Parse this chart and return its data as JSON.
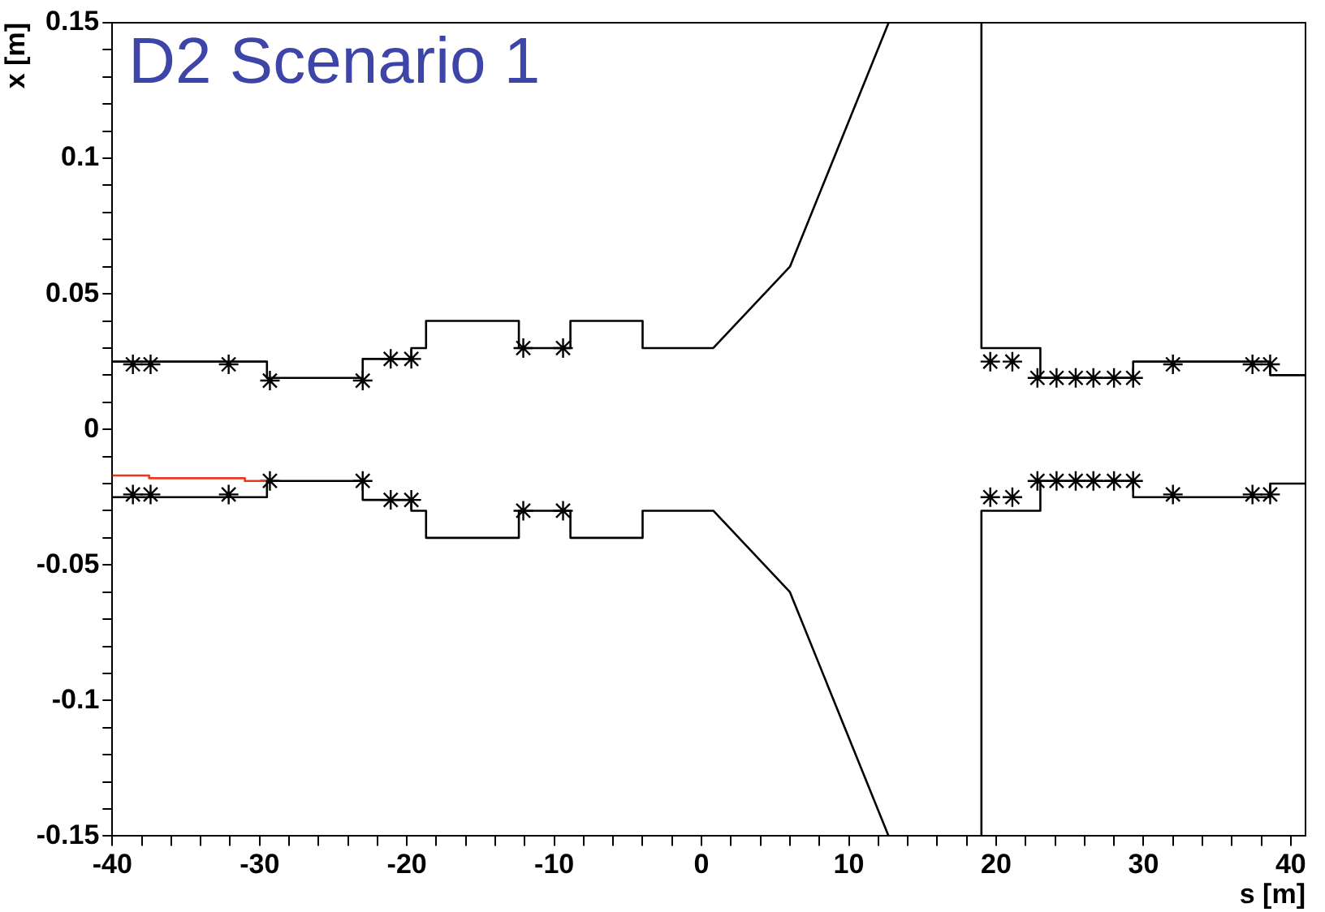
{
  "chart_data": {
    "type": "line",
    "title": "D2 Scenario 1",
    "xlabel": "s [m]",
    "ylabel": "x [m]",
    "xlim": [
      -40,
      41
    ],
    "ylim": [
      -0.15,
      0.15
    ],
    "xticks": [
      -40,
      {
        "value": -38,
        "label": null
      },
      {
        "value": -36,
        "label": null
      },
      {
        "value": -34,
        "label": null
      },
      {
        "value": -32,
        "label": null
      },
      -30,
      {
        "value": -28,
        "label": null
      },
      {
        "value": -26,
        "label": null
      },
      {
        "value": -24,
        "label": null
      },
      {
        "value": -22,
        "label": null
      },
      -20,
      {
        "value": -18,
        "label": null
      },
      {
        "value": -16,
        "label": null
      },
      {
        "value": -14,
        "label": null
      },
      {
        "value": -12,
        "label": null
      },
      -10,
      {
        "value": -8,
        "label": null
      },
      {
        "value": -6,
        "label": null
      },
      {
        "value": -4,
        "label": null
      },
      {
        "value": -2,
        "label": null
      },
      0,
      {
        "value": 2,
        "label": null
      },
      {
        "value": 4,
        "label": null
      },
      {
        "value": 6,
        "label": null
      },
      {
        "value": 8,
        "label": null
      },
      10,
      {
        "value": 12,
        "label": null
      },
      {
        "value": 14,
        "label": null
      },
      {
        "value": 16,
        "label": null
      },
      {
        "value": 18,
        "label": null
      },
      20,
      {
        "value": 22,
        "label": null
      },
      {
        "value": 24,
        "label": null
      },
      {
        "value": 26,
        "label": null
      },
      {
        "value": 28,
        "label": null
      },
      30,
      {
        "value": 32,
        "label": null
      },
      {
        "value": 34,
        "label": null
      },
      {
        "value": 36,
        "label": null
      },
      {
        "value": 38,
        "label": null
      },
      40
    ],
    "yticks": [
      -0.15,
      {
        "value": -0.14,
        "label": null
      },
      {
        "value": -0.13,
        "label": null
      },
      {
        "value": -0.12,
        "label": null
      },
      {
        "value": -0.11,
        "label": null
      },
      -0.1,
      {
        "value": -0.09,
        "label": null
      },
      {
        "value": -0.08,
        "label": null
      },
      {
        "value": -0.07,
        "label": null
      },
      {
        "value": -0.06,
        "label": null
      },
      -0.05,
      {
        "value": -0.04,
        "label": null
      },
      {
        "value": -0.03,
        "label": null
      },
      {
        "value": -0.02,
        "label": null
      },
      {
        "value": -0.01,
        "label": null
      },
      0,
      {
        "value": 0.01,
        "label": null
      },
      {
        "value": 0.02,
        "label": null
      },
      {
        "value": 0.03,
        "label": null
      },
      {
        "value": 0.04,
        "label": null
      },
      0.05,
      {
        "value": 0.06,
        "label": null
      },
      {
        "value": 0.07,
        "label": null
      },
      {
        "value": 0.08,
        "label": null
      },
      {
        "value": 0.09,
        "label": null
      },
      0.1,
      {
        "value": 0.11,
        "label": null
      },
      {
        "value": 0.12,
        "label": null
      },
      {
        "value": 0.13,
        "label": null
      },
      {
        "value": 0.14,
        "label": null
      },
      0.15
    ],
    "grid": false,
    "legend": false,
    "line_style": "solid",
    "series": [
      {
        "color": "#000000",
        "marker": "none",
        "x": [
          -40,
          -29.5,
          -29.5,
          -23,
          -23,
          -19.7,
          -19.7,
          -18.7,
          -18.7,
          -12.4,
          -12.4,
          -8.9,
          -8.9,
          -4,
          -4,
          0.8,
          6,
          12.7
        ],
        "values": [
          0.025,
          0.025,
          0.019,
          0.019,
          0.026,
          0.026,
          0.03,
          0.03,
          0.04,
          0.04,
          0.03,
          0.03,
          0.04,
          0.04,
          0.03,
          0.03,
          0.06,
          0.15
        ]
      },
      {
        "color": "#000000",
        "marker": "none",
        "x": [
          -40,
          -29.5,
          -29.5,
          -23,
          -23,
          -19.7,
          -19.7,
          -18.7,
          -18.7,
          -12.4,
          -12.4,
          -8.9,
          -8.9,
          -4,
          -4,
          0.8,
          6,
          12.7
        ],
        "values": [
          -0.025,
          -0.025,
          -0.019,
          -0.019,
          -0.026,
          -0.026,
          -0.03,
          -0.03,
          -0.04,
          -0.04,
          -0.03,
          -0.03,
          -0.04,
          -0.04,
          -0.03,
          -0.03,
          -0.06,
          -0.15
        ]
      },
      {
        "color": "#000000",
        "marker": "none",
        "x": [
          19,
          19,
          23,
          23,
          29.3,
          29.3,
          38.6,
          38.6,
          41
        ],
        "values": [
          0.15,
          0.03,
          0.03,
          0.019,
          0.019,
          0.025,
          0.025,
          0.02,
          0.02
        ]
      },
      {
        "color": "#000000",
        "marker": "none",
        "x": [
          19,
          19,
          23,
          23,
          29.3,
          29.3,
          38.6,
          38.6,
          41
        ],
        "values": [
          -0.15,
          -0.03,
          -0.03,
          -0.019,
          -0.019,
          -0.025,
          -0.025,
          -0.02,
          -0.02
        ]
      },
      {
        "color": "#e8381e",
        "marker": "none",
        "x": [
          -40,
          -37.5,
          -37.5,
          -31,
          -31,
          -29.3
        ],
        "values": [
          -0.017,
          -0.017,
          -0.018,
          -0.018,
          -0.019,
          -0.019
        ]
      },
      {
        "type": "scatter",
        "color": "#000000",
        "marker": "cross",
        "x": [
          -38.6,
          -37.4,
          -32.1,
          -29.3,
          -23,
          -21.1,
          -19.7,
          -12.1,
          -9.4,
          19.6,
          21.1,
          22.8,
          24.1,
          25.4,
          26.6,
          28,
          29.3,
          32,
          37.4,
          38.6,
          -38.6,
          -37.4,
          -32.1,
          -29.3,
          -23,
          -21.1,
          -19.7,
          -12.1,
          -9.4,
          19.6,
          21.1,
          22.8,
          24.1,
          25.4,
          26.6,
          28,
          29.3,
          32,
          37.4,
          38.6
        ],
        "values": [
          0.024,
          0.024,
          0.024,
          0.018,
          0.018,
          0.026,
          0.026,
          0.03,
          0.03,
          0.025,
          0.025,
          0.019,
          0.019,
          0.019,
          0.019,
          0.019,
          0.019,
          0.024,
          0.024,
          0.024,
          -0.024,
          -0.024,
          -0.024,
          -0.019,
          -0.019,
          -0.026,
          -0.026,
          -0.03,
          -0.03,
          -0.025,
          -0.025,
          -0.019,
          -0.019,
          -0.019,
          -0.019,
          -0.019,
          -0.019,
          -0.024,
          -0.024,
          -0.024
        ]
      }
    ]
  }
}
